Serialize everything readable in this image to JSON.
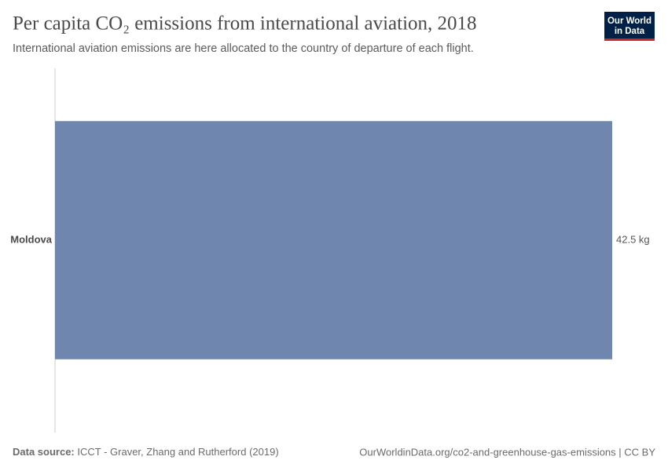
{
  "chart_data": {
    "type": "bar",
    "orientation": "horizontal",
    "title": "Per capita CO₂ emissions from international aviation, 2018",
    "subtitle": "International aviation emissions are here allocated to the country of departure of each flight.",
    "categories": [
      "Moldova"
    ],
    "values": [
      42.5
    ],
    "value_labels": [
      "42.5 kg"
    ],
    "color": "#6f87af",
    "source_label": "Data source:",
    "source": "ICCT - Graver, Zhang and Rutherford (2019)",
    "url": "OurWorldinData.org/co2-and-greenhouse-gas-emissions | CC BY",
    "logo": [
      "Our World",
      "in Data"
    ]
  }
}
